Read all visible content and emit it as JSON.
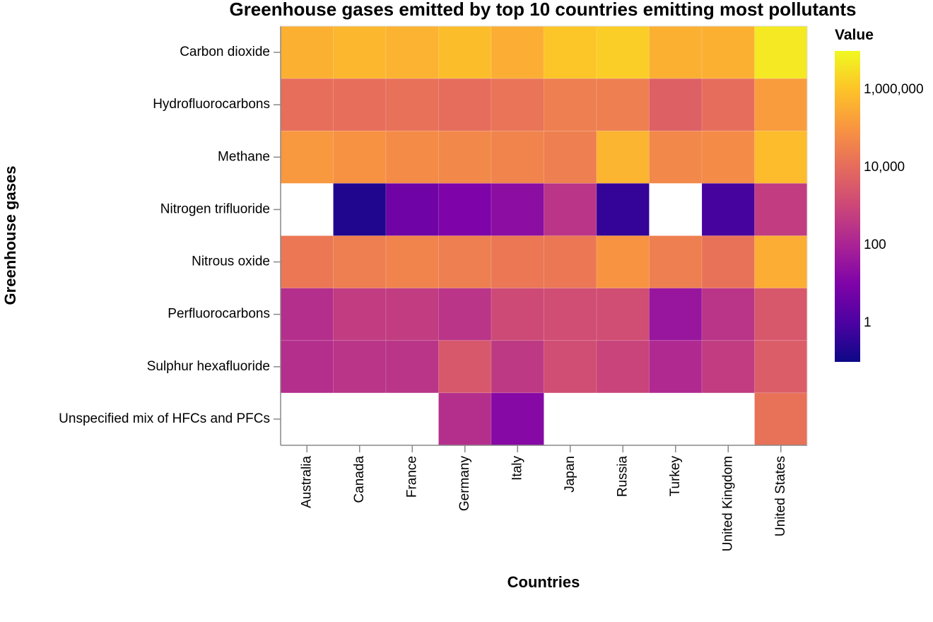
{
  "chart_data": {
    "type": "heatmap",
    "title": "Greenhouse gases emitted by top 10 countries emitting most pollutants",
    "xlabel": "Countries",
    "ylabel": "Greenhouse gases",
    "x_categories": [
      "Australia",
      "Canada",
      "France",
      "Germany",
      "Italy",
      "Japan",
      "Russia",
      "Turkey",
      "United Kingdom",
      "United States"
    ],
    "y_categories": [
      "Carbon dioxide",
      "Hydrofluorocarbons",
      "Methane",
      "Nitrogen trifluoride",
      "Nitrous oxide",
      "Perfluorocarbons",
      "Sulphur hexafluoride",
      "Unspecified mix of HFCs and PFCs"
    ],
    "values": [
      [
        400000,
        550000,
        450000,
        750000,
        350000,
        1100000,
        1500000,
        400000,
        400000,
        5000000
      ],
      [
        12000,
        12000,
        14000,
        11000,
        17000,
        30000,
        30000,
        5000,
        11000,
        150000
      ],
      [
        120000,
        90000,
        60000,
        50000,
        40000,
        30000,
        500000,
        50000,
        60000,
        700000
      ],
      [
        null,
        0.2,
        5,
        10,
        20,
        300,
        0.4,
        null,
        0.8,
        500
      ],
      [
        20000,
        30000,
        40000,
        30000,
        20000,
        20000,
        100000,
        30000,
        15000,
        350000
      ],
      [
        200,
        500,
        500,
        300,
        1200,
        1500,
        1500,
        40,
        300,
        3000
      ],
      [
        200,
        300,
        300,
        3000,
        400,
        1500,
        800,
        150,
        500,
        4000
      ],
      [
        null,
        null,
        null,
        200,
        15,
        null,
        null,
        null,
        null,
        15000
      ]
    ],
    "color_scale": {
      "scheme": "plasma",
      "type": "log",
      "domain": [
        0.1,
        10000000
      ],
      "ticks": [
        1,
        100,
        10000,
        1000000
      ],
      "tick_labels": [
        "1",
        "100",
        "10,000",
        "1,000,000"
      ]
    },
    "legend": {
      "title": "Value",
      "placement": "right"
    }
  }
}
